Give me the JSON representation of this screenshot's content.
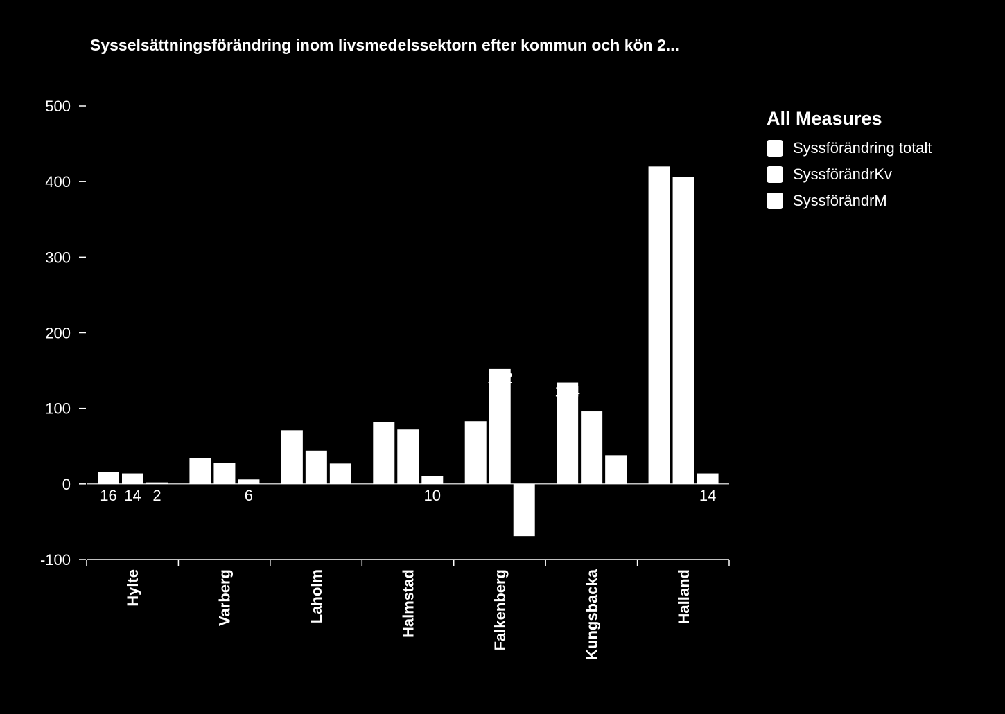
{
  "chart_data": {
    "type": "bar",
    "title": "Sysselsättningsförändring inom livsmedelssektorn efter kommun och kön 2...",
    "categories": [
      "Hylte",
      "Varberg",
      "Laholm",
      "Halmstad",
      "Falkenberg",
      "Kungsbacka",
      "Halland"
    ],
    "series": [
      {
        "name": "Syssförändring totalt",
        "values": [
          16,
          34,
          71,
          82,
          83,
          134,
          420
        ]
      },
      {
        "name": "SyssförändrKv",
        "values": [
          14,
          28,
          44,
          72,
          152,
          96,
          406
        ]
      },
      {
        "name": "SyssförändrM",
        "values": [
          2,
          6,
          27,
          10,
          -69,
          38,
          14
        ]
      }
    ],
    "data_labels": [
      {
        "series": 0,
        "category": 0,
        "text": "16"
      },
      {
        "series": 1,
        "category": 0,
        "text": "14"
      },
      {
        "series": 2,
        "category": 0,
        "text": "2"
      },
      {
        "series": 2,
        "category": 1,
        "text": "6"
      },
      {
        "series": 2,
        "category": 3,
        "text": "10"
      },
      {
        "series": 1,
        "category": 4,
        "text": "152"
      },
      {
        "series": 2,
        "category": 4,
        "text": "-69"
      },
      {
        "series": 0,
        "category": 5,
        "text": "134"
      },
      {
        "series": 2,
        "category": 6,
        "text": "14"
      }
    ],
    "yticks": [
      "500",
      "400",
      "300",
      "200",
      "100",
      "0",
      "-100"
    ],
    "ylim": [
      -100,
      500
    ],
    "legend": {
      "title": "All Measures",
      "position": "right"
    },
    "grid": false,
    "colors": {
      "background": "#000000",
      "bars": "#ffffff",
      "text": "#ffffff"
    }
  }
}
